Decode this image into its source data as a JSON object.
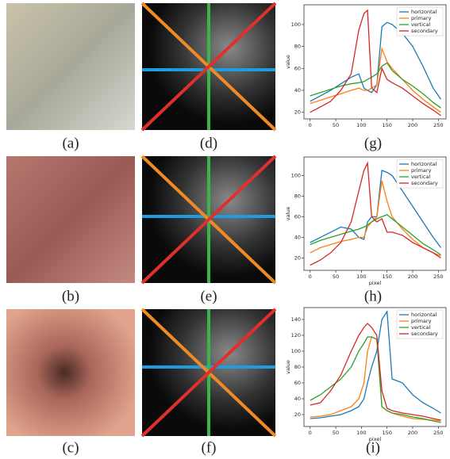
{
  "labels": [
    "(a)",
    "(b)",
    "(c)",
    "(d)",
    "(e)",
    "(f)",
    "(g)",
    "(h)",
    "(i)"
  ],
  "chart_data": [
    {
      "type": "line",
      "ylabel": "value",
      "x": [
        0,
        20,
        40,
        60,
        80,
        95,
        105,
        112,
        120,
        130,
        140,
        150,
        160,
        180,
        200,
        220,
        240,
        255
      ],
      "xlim": [
        -12,
        265
      ],
      "xticks": [
        0,
        50,
        100,
        150,
        200,
        250
      ],
      "ylim": [
        14,
        118
      ],
      "yticks": [
        20,
        40,
        60,
        80,
        100
      ],
      "legend": "upper right",
      "series": [
        {
          "name": "horizontal",
          "color": "#1f77b4",
          "values": [
            30,
            35,
            40,
            46,
            52,
            55,
            42,
            40,
            38,
            45,
            98,
            102,
            100,
            92,
            80,
            62,
            42,
            32
          ]
        },
        {
          "name": "primary",
          "color": "#ff7f0e",
          "values": [
            28,
            31,
            34,
            37,
            40,
            42,
            40,
            40,
            42,
            45,
            78,
            66,
            60,
            50,
            40,
            32,
            25,
            20
          ]
        },
        {
          "name": "vertical",
          "color": "#2ca02c",
          "values": [
            35,
            38,
            41,
            44,
            46,
            47,
            48,
            50,
            52,
            55,
            62,
            65,
            58,
            50,
            44,
            37,
            29,
            24
          ]
        },
        {
          "name": "secondary",
          "color": "#d62728",
          "values": [
            20,
            25,
            30,
            40,
            55,
            95,
            110,
            113,
            42,
            38,
            60,
            50,
            47,
            42,
            35,
            28,
            22,
            17
          ]
        }
      ]
    },
    {
      "type": "line",
      "ylabel": "value",
      "xlabel": "pixel",
      "x": [
        0,
        20,
        40,
        60,
        80,
        95,
        105,
        112,
        120,
        130,
        140,
        150,
        160,
        180,
        200,
        220,
        240,
        255
      ],
      "xlim": [
        -12,
        265
      ],
      "xticks": [
        0,
        50,
        100,
        150,
        200,
        250
      ],
      "ylim": [
        8,
        118
      ],
      "yticks": [
        20,
        40,
        60,
        80,
        100
      ],
      "legend": "upper right",
      "series": [
        {
          "name": "horizontal",
          "color": "#1f77b4",
          "values": [
            35,
            40,
            45,
            50,
            48,
            40,
            38,
            55,
            60,
            60,
            105,
            103,
            100,
            85,
            70,
            55,
            40,
            30
          ]
        },
        {
          "name": "primary",
          "color": "#ff7f0e",
          "values": [
            25,
            30,
            33,
            36,
            38,
            40,
            40,
            50,
            55,
            60,
            95,
            75,
            60,
            48,
            38,
            30,
            25,
            22
          ]
        },
        {
          "name": "vertical",
          "color": "#2ca02c",
          "values": [
            33,
            37,
            40,
            43,
            46,
            48,
            50,
            52,
            55,
            58,
            60,
            62,
            58,
            50,
            42,
            34,
            28,
            23
          ]
        },
        {
          "name": "secondary",
          "color": "#d62728",
          "values": [
            13,
            18,
            25,
            35,
            55,
            85,
            105,
            112,
            60,
            55,
            58,
            45,
            45,
            42,
            35,
            30,
            25,
            20
          ]
        }
      ]
    },
    {
      "type": "line",
      "ylabel": "value",
      "xlabel": "pixel",
      "x": [
        0,
        20,
        40,
        60,
        80,
        95,
        105,
        112,
        120,
        130,
        140,
        150,
        160,
        180,
        200,
        220,
        240,
        255
      ],
      "xlim": [
        -12,
        265
      ],
      "xticks": [
        0,
        50,
        100,
        150,
        200,
        250
      ],
      "ylim": [
        5,
        155
      ],
      "yticks": [
        20,
        40,
        60,
        80,
        100,
        120,
        140
      ],
      "legend": "upper right",
      "series": [
        {
          "name": "horizontal",
          "color": "#1f77b4",
          "values": [
            15,
            16,
            18,
            20,
            25,
            30,
            40,
            60,
            80,
            100,
            140,
            150,
            65,
            60,
            45,
            35,
            28,
            22
          ]
        },
        {
          "name": "primary",
          "color": "#ff7f0e",
          "values": [
            17,
            18,
            20,
            25,
            30,
            40,
            60,
            100,
            118,
            115,
            30,
            25,
            22,
            18,
            15,
            14,
            13,
            12
          ]
        },
        {
          "name": "vertical",
          "color": "#2ca02c",
          "values": [
            38,
            45,
            55,
            65,
            80,
            100,
            110,
            118,
            118,
            115,
            30,
            25,
            22,
            20,
            17,
            15,
            12,
            10
          ]
        },
        {
          "name": "secondary",
          "color": "#d62728",
          "values": [
            32,
            35,
            50,
            70,
            100,
            120,
            130,
            135,
            130,
            120,
            50,
            28,
            25,
            22,
            20,
            18,
            15,
            13
          ]
        }
      ]
    }
  ]
}
